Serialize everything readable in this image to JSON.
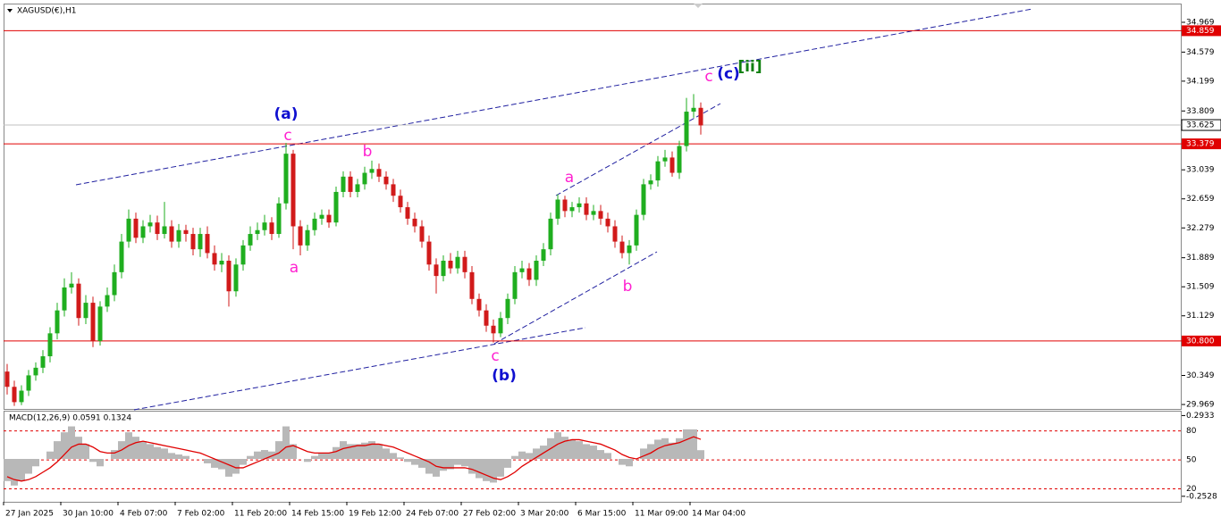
{
  "chart_data": {
    "type": "candlestick",
    "title": "XAGUSD(€),H1",
    "categories": [
      "27 Jan 2025",
      null,
      null,
      null,
      null,
      null,
      null,
      null,
      "30 Jan 10:00",
      null,
      null,
      null,
      null,
      null,
      null,
      null,
      "4 Feb 07:00",
      null,
      null,
      null,
      null,
      null,
      null,
      null,
      "7 Feb 02:00",
      null,
      null,
      null,
      null,
      null,
      null,
      null,
      "11 Feb 20:00",
      null,
      null,
      null,
      null,
      null,
      null,
      null,
      "14 Feb 15:00",
      null,
      null,
      null,
      null,
      null,
      null,
      null,
      "19 Feb 12:00",
      null,
      null,
      null,
      null,
      null,
      null,
      null,
      "24 Feb 07:00",
      null,
      null,
      null,
      null,
      null,
      null,
      null,
      "27 Feb 02:00",
      null,
      null,
      null,
      null,
      null,
      null,
      null,
      "3 Mar 20:00",
      null,
      null,
      null,
      null,
      null,
      null,
      null,
      "6 Mar 15:00",
      null,
      null,
      null,
      null,
      null,
      null,
      null,
      "11 Mar 09:00",
      null,
      null,
      null,
      null,
      null,
      null,
      null,
      "14 Mar 04:00",
      null
    ],
    "open": [
      30.4,
      30.2,
      30.0,
      30.15,
      30.35,
      30.45,
      30.6,
      30.9,
      31.2,
      31.5,
      31.55,
      31.1,
      31.3,
      30.8,
      31.25,
      31.4,
      31.7,
      32.1,
      32.4,
      32.15,
      32.3,
      32.35,
      32.2,
      32.3,
      32.1,
      32.25,
      32.2,
      32.0,
      32.2,
      31.95,
      31.8,
      31.85,
      31.45,
      31.8,
      32.05,
      32.2,
      32.25,
      32.35,
      32.2,
      32.6,
      33.25,
      32.3,
      32.05,
      32.25,
      32.4,
      32.45,
      32.35,
      32.75,
      32.95,
      32.75,
      32.85,
      33.0,
      33.05,
      32.95,
      32.85,
      32.7,
      32.55,
      32.4,
      32.3,
      32.1,
      31.8,
      31.65,
      31.85,
      31.75,
      31.9,
      31.7,
      31.35,
      31.2,
      31.0,
      30.9,
      31.1,
      31.35,
      31.7,
      31.75,
      31.6,
      31.85,
      32.0,
      32.4,
      32.65,
      32.5,
      32.55,
      32.6,
      32.45,
      32.5,
      32.4,
      32.3,
      32.1,
      31.95,
      32.05,
      32.45,
      32.85,
      32.9,
      33.15,
      33.2,
      33.0,
      33.35,
      33.8,
      33.85
    ],
    "high": [
      30.5,
      30.28,
      30.22,
      30.42,
      30.52,
      30.68,
      30.98,
      31.3,
      31.62,
      31.7,
      31.62,
      31.4,
      31.38,
      31.32,
      31.5,
      31.8,
      32.2,
      32.52,
      32.48,
      32.38,
      32.45,
      32.44,
      32.62,
      32.38,
      32.33,
      32.32,
      32.28,
      32.28,
      32.3,
      32.05,
      31.95,
      31.92,
      31.88,
      32.12,
      32.3,
      32.35,
      32.45,
      32.42,
      32.68,
      33.39,
      33.3,
      32.38,
      32.32,
      32.48,
      32.52,
      32.52,
      32.82,
      33.02,
      33.02,
      32.92,
      33.08,
      33.16,
      33.12,
      33.02,
      32.92,
      32.78,
      32.62,
      32.48,
      32.38,
      32.18,
      31.88,
      31.92,
      31.95,
      31.98,
      31.98,
      31.78,
      31.42,
      31.28,
      31.08,
      31.18,
      31.42,
      31.78,
      31.85,
      31.82,
      31.92,
      32.08,
      32.48,
      32.72,
      32.7,
      32.62,
      32.68,
      32.68,
      32.58,
      32.58,
      32.48,
      32.38,
      32.18,
      32.12,
      32.52,
      32.92,
      32.98,
      33.22,
      33.3,
      33.28,
      33.42,
      33.98,
      34.03,
      33.92
    ],
    "low": [
      30.1,
      29.95,
      29.96,
      30.08,
      30.28,
      30.38,
      30.52,
      30.82,
      31.12,
      31.42,
      31.0,
      31.02,
      30.72,
      30.74,
      31.18,
      31.32,
      31.62,
      32.02,
      32.08,
      32.08,
      32.22,
      32.12,
      32.14,
      32.02,
      32.02,
      32.1,
      31.92,
      31.9,
      31.88,
      31.72,
      31.7,
      31.25,
      31.38,
      31.72,
      31.98,
      32.12,
      32.18,
      32.12,
      32.15,
      32.52,
      32.0,
      31.92,
      31.98,
      32.18,
      32.32,
      32.28,
      32.3,
      32.68,
      32.68,
      32.68,
      32.78,
      32.92,
      32.88,
      32.78,
      32.62,
      32.48,
      32.32,
      32.22,
      32.02,
      31.72,
      31.42,
      31.58,
      31.68,
      31.68,
      31.62,
      31.28,
      31.12,
      30.92,
      30.78,
      30.85,
      31.02,
      31.28,
      31.62,
      31.52,
      31.52,
      31.78,
      31.92,
      32.32,
      32.42,
      32.42,
      32.48,
      32.38,
      32.38,
      32.32,
      32.22,
      32.02,
      31.88,
      31.8,
      31.98,
      32.38,
      32.78,
      32.82,
      33.08,
      32.95,
      32.92,
      33.28,
      33.72,
      33.5
    ],
    "close": [
      30.2,
      30.0,
      30.15,
      30.35,
      30.45,
      30.6,
      30.9,
      31.2,
      31.5,
      31.55,
      31.1,
      31.3,
      30.8,
      31.25,
      31.4,
      31.7,
      32.1,
      32.4,
      32.15,
      32.3,
      32.35,
      32.2,
      32.3,
      32.1,
      32.25,
      32.2,
      32.0,
      32.2,
      31.95,
      31.8,
      31.85,
      31.45,
      31.8,
      32.05,
      32.2,
      32.25,
      32.35,
      32.2,
      32.6,
      33.25,
      32.3,
      32.05,
      32.25,
      32.4,
      32.45,
      32.35,
      32.75,
      32.95,
      32.75,
      32.85,
      33.0,
      33.05,
      32.95,
      32.85,
      32.7,
      32.55,
      32.4,
      32.3,
      32.1,
      31.8,
      31.65,
      31.85,
      31.75,
      31.9,
      31.7,
      31.35,
      31.2,
      31.0,
      30.9,
      31.1,
      31.35,
      31.7,
      31.75,
      31.6,
      31.85,
      32.0,
      32.4,
      32.65,
      32.5,
      32.55,
      32.6,
      32.45,
      32.5,
      32.4,
      32.3,
      32.1,
      31.95,
      32.05,
      32.45,
      32.85,
      32.9,
      33.15,
      33.2,
      33.0,
      33.35,
      33.8,
      33.85,
      33.62
    ],
    "up_color": "#1fae1f",
    "down_color": "#d11a1a",
    "ylim": [
      29.911,
      35.214
    ],
    "yticks": [
      34.969,
      34.579,
      34.199,
      33.809,
      33.039,
      32.659,
      32.279,
      31.889,
      31.509,
      31.129,
      30.349,
      29.969
    ],
    "levels": [
      34.859,
      33.379,
      {
        "value": 30.8,
        "label": "30.800"
      }
    ],
    "level_color": "#e00000",
    "current_price": 33.625,
    "annotations": [
      {
        "text": "(a)",
        "color": "#1010d0"
      },
      {
        "text": "c",
        "color": "#ff20d0"
      },
      {
        "text": "b",
        "color": "#ff20d0"
      },
      {
        "text": "a",
        "color": "#ff20d0"
      },
      {
        "text": "c",
        "color": "#ff20d0"
      },
      {
        "text": "(b)",
        "color": "#1010d0"
      },
      {
        "text": "a",
        "color": "#ff20d0"
      },
      {
        "text": "b",
        "color": "#ff20d0"
      },
      {
        "text": "c",
        "color": "#ff20d0"
      },
      {
        "text": "(c)",
        "color": "#1010d0"
      },
      {
        "text": "[ii]",
        "color": "#108010"
      }
    ],
    "macd": {
      "title": "MACD(12,26,9) 0.0591 0.1324",
      "histogram": [
        -0.15,
        -0.18,
        -0.15,
        -0.1,
        -0.05,
        0.0,
        0.05,
        0.12,
        0.18,
        0.22,
        0.15,
        0.1,
        -0.02,
        -0.05,
        0.0,
        0.06,
        0.12,
        0.18,
        0.15,
        0.12,
        0.1,
        0.08,
        0.07,
        0.04,
        0.03,
        0.02,
        0.0,
        0.0,
        -0.03,
        -0.06,
        -0.07,
        -0.12,
        -0.1,
        -0.04,
        0.02,
        0.05,
        0.06,
        0.05,
        0.12,
        0.22,
        0.1,
        0.0,
        -0.02,
        0.02,
        0.04,
        0.04,
        0.08,
        0.12,
        0.1,
        0.1,
        0.11,
        0.12,
        0.1,
        0.07,
        0.04,
        0.01,
        -0.02,
        -0.04,
        -0.06,
        -0.1,
        -0.12,
        -0.08,
        -0.07,
        -0.04,
        -0.05,
        -0.1,
        -0.13,
        -0.15,
        -0.16,
        -0.12,
        -0.06,
        0.02,
        0.05,
        0.04,
        0.07,
        0.09,
        0.14,
        0.18,
        0.15,
        0.13,
        0.12,
        0.1,
        0.09,
        0.06,
        0.04,
        0.0,
        -0.04,
        -0.05,
        0.0,
        0.07,
        0.1,
        0.13,
        0.14,
        0.11,
        0.14,
        0.2,
        0.2,
        0.0591
      ],
      "signal": [
        -0.12,
        -0.14,
        -0.15,
        -0.14,
        -0.12,
        -0.09,
        -0.06,
        -0.02,
        0.03,
        0.08,
        0.1,
        0.1,
        0.08,
        0.05,
        0.04,
        0.04,
        0.06,
        0.09,
        0.11,
        0.12,
        0.11,
        0.1,
        0.09,
        0.08,
        0.07,
        0.06,
        0.05,
        0.04,
        0.02,
        0.0,
        -0.02,
        -0.04,
        -0.06,
        -0.06,
        -0.04,
        -0.02,
        0.0,
        0.02,
        0.04,
        0.08,
        0.09,
        0.07,
        0.05,
        0.04,
        0.04,
        0.04,
        0.05,
        0.07,
        0.08,
        0.09,
        0.09,
        0.1,
        0.1,
        0.09,
        0.08,
        0.06,
        0.04,
        0.02,
        0.0,
        -0.02,
        -0.05,
        -0.06,
        -0.06,
        -0.06,
        -0.06,
        -0.07,
        -0.09,
        -0.11,
        -0.13,
        -0.14,
        -0.12,
        -0.09,
        -0.05,
        -0.02,
        0.01,
        0.04,
        0.07,
        0.1,
        0.12,
        0.13,
        0.13,
        0.12,
        0.11,
        0.1,
        0.08,
        0.06,
        0.03,
        0.01,
        0.0,
        0.02,
        0.04,
        0.07,
        0.09,
        0.1,
        0.11,
        0.13,
        0.15,
        0.1324
      ],
      "histogram_color": "#b8b8b8",
      "signal_color": "#e00000",
      "ylim": [
        -0.29,
        0.32
      ],
      "yticks": [
        0.2933,
        -0.2528
      ],
      "levels": [
        80,
        50,
        20
      ],
      "levels_lim": [
        6.6,
        100
      ]
    }
  }
}
